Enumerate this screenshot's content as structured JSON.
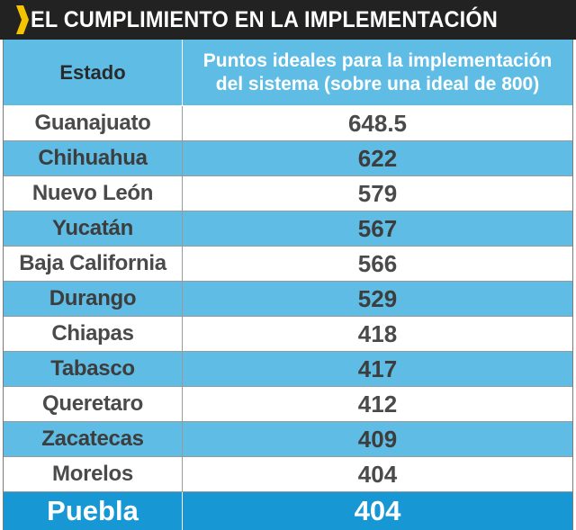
{
  "title": "EL CUMPLIMIENTO EN LA IMPLEMENTACIÓN",
  "accent_colors": {
    "title_background": "#222222",
    "chevron": "#f5c400",
    "header_blue": "#5fbde5",
    "stripe_blue": "#5fbde5",
    "highlight_blue": "#1797d3"
  },
  "chart_data": {
    "type": "table",
    "title": "EL CUMPLIMIENTO EN LA IMPLEMENTACIÓN",
    "columns": [
      "Estado",
      "Puntos ideales para la implementación del sistema (sobre una ideal de 800)"
    ],
    "header_lines": [
      "Puntos ideales para la implementación",
      "del sistema (sobre una ideal de 800)"
    ],
    "rows": [
      {
        "state": "Guanajuato",
        "value": "648.5"
      },
      {
        "state": "Chihuahua",
        "value": "622"
      },
      {
        "state": "Nuevo León",
        "value": "579"
      },
      {
        "state": "Yucatán",
        "value": "567"
      },
      {
        "state": "Baja California",
        "value": "566"
      },
      {
        "state": "Durango",
        "value": "529"
      },
      {
        "state": "Chiapas",
        "value": "418"
      },
      {
        "state": "Tabasco",
        "value": "417"
      },
      {
        "state": "Queretaro",
        "value": "412"
      },
      {
        "state": "Zacatecas",
        "value": "409"
      },
      {
        "state": "Morelos",
        "value": "404"
      }
    ],
    "highlight_row": {
      "state": "Puebla",
      "value": "404"
    }
  }
}
